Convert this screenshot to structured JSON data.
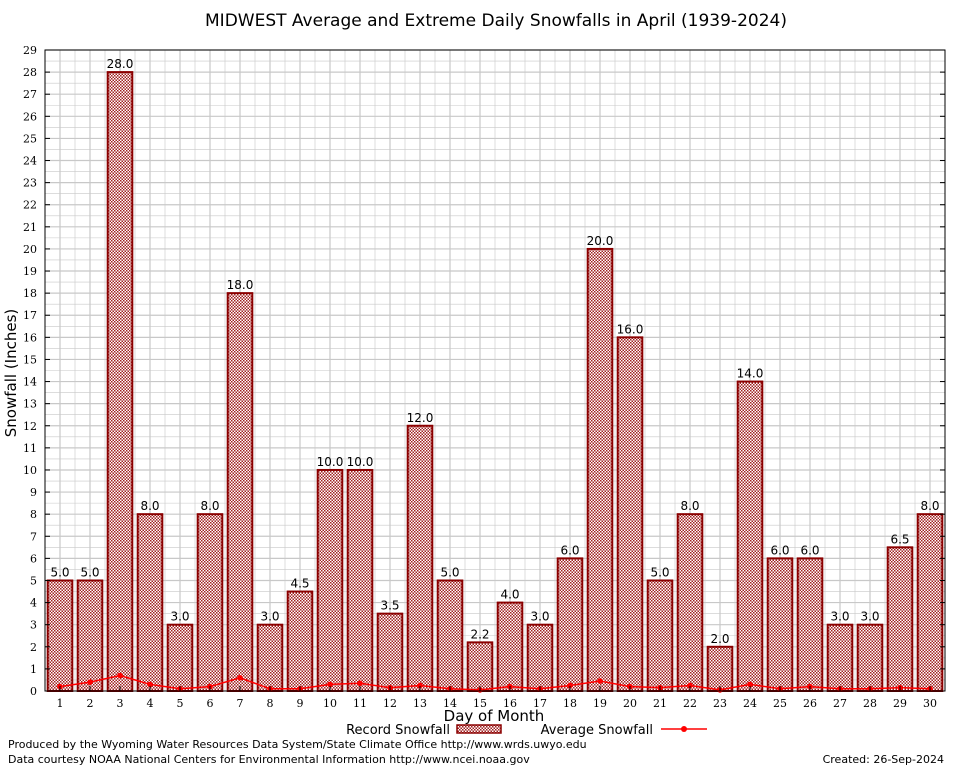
{
  "chart_data": {
    "type": "bar",
    "title": "MIDWEST Average and Extreme Daily Snowfalls in April (1939-2024)",
    "xlabel": "Day of Month",
    "ylabel": "Snowfall (Inches)",
    "ylim": [
      0,
      29
    ],
    "grid": true,
    "categories": [
      "1",
      "2",
      "3",
      "4",
      "5",
      "6",
      "7",
      "8",
      "9",
      "10",
      "11",
      "12",
      "13",
      "14",
      "15",
      "16",
      "17",
      "18",
      "19",
      "20",
      "21",
      "22",
      "23",
      "24",
      "25",
      "26",
      "27",
      "28",
      "29",
      "30"
    ],
    "y_ticks": [
      "0",
      "1",
      "2",
      "3",
      "4",
      "5",
      "6",
      "7",
      "8",
      "9",
      "10",
      "11",
      "12",
      "13",
      "14",
      "15",
      "16",
      "17",
      "18",
      "19",
      "20",
      "21",
      "22",
      "23",
      "24",
      "25",
      "26",
      "27",
      "28",
      "29"
    ],
    "series": [
      {
        "name": "Record Snowfall",
        "type": "bar",
        "values": [
          5.0,
          5.0,
          28.0,
          8.0,
          3.0,
          8.0,
          18.0,
          3.0,
          4.5,
          10.0,
          10.0,
          3.5,
          12.0,
          5.0,
          2.2,
          4.0,
          3.0,
          6.0,
          20.0,
          16.0,
          5.0,
          8.0,
          2.0,
          14.0,
          6.0,
          6.0,
          3.0,
          3.0,
          6.5,
          8.0
        ],
        "labels": [
          "5.0",
          "5.0",
          "28.0",
          "8.0",
          "3.0",
          "8.0",
          "18.0",
          "3.0",
          "4.5",
          "10.0",
          "10.0",
          "3.5",
          "12.0",
          "5.0",
          "2.2",
          "4.0",
          "3.0",
          "6.0",
          "20.0",
          "16.0",
          "5.0",
          "8.0",
          "2.0",
          "14.0",
          "6.0",
          "6.0",
          "3.0",
          "3.0",
          "6.5",
          "8.0"
        ]
      },
      {
        "name": "Average Snowfall",
        "type": "line",
        "values": [
          0.2,
          0.4,
          0.7,
          0.3,
          0.1,
          0.2,
          0.6,
          0.1,
          0.1,
          0.3,
          0.35,
          0.15,
          0.25,
          0.1,
          0.05,
          0.2,
          0.1,
          0.25,
          0.45,
          0.2,
          0.15,
          0.25,
          0.05,
          0.3,
          0.1,
          0.2,
          0.1,
          0.1,
          0.15,
          0.1
        ]
      }
    ],
    "legend_position": "bottom",
    "colors": {
      "bar_edge": "#8b0000",
      "bar_fill": "#c84848",
      "line": "#ff0000",
      "grid": "#c8c8c8"
    }
  },
  "footer": {
    "credit_line1": "Produced by the Wyoming Water Resources Data System/State Climate Office http://www.wrds.uwyo.edu",
    "credit_line2": "Data courtesy NOAA National Centers for Environmental Information http://www.ncei.noaa.gov",
    "created": "Created:  26-Sep-2024"
  }
}
